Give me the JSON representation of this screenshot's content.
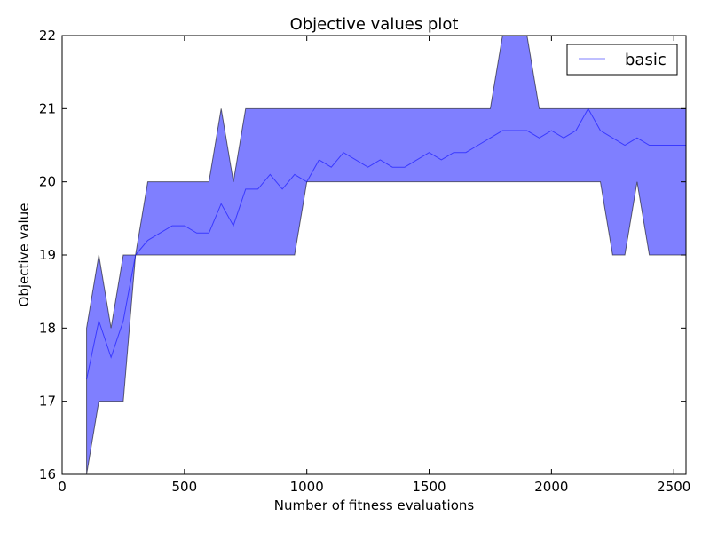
{
  "chart_data": {
    "type": "line",
    "title": "Objective values plot",
    "xlabel": "Number of fitness evaluations",
    "ylabel": "Objective value",
    "xlim": [
      0,
      2550
    ],
    "ylim": [
      16,
      22
    ],
    "xticks": [
      0,
      500,
      1000,
      1500,
      2000,
      2500
    ],
    "yticks": [
      16,
      17,
      18,
      19,
      20,
      21,
      22
    ],
    "grid": false,
    "legend_position": "top-right",
    "x": [
      100,
      150,
      200,
      250,
      300,
      350,
      400,
      450,
      500,
      550,
      600,
      650,
      700,
      750,
      800,
      850,
      900,
      950,
      1000,
      1050,
      1100,
      1150,
      1200,
      1250,
      1300,
      1350,
      1400,
      1450,
      1500,
      1550,
      1600,
      1650,
      1700,
      1750,
      1800,
      1850,
      1900,
      1950,
      2000,
      2050,
      2100,
      2150,
      2200,
      2250,
      2300,
      2350,
      2400,
      2450,
      2500,
      2550
    ],
    "series": [
      {
        "name": "basic",
        "color": "#0000ff",
        "mean": [
          17.3,
          18.1,
          17.6,
          18.1,
          19.0,
          19.2,
          19.3,
          19.4,
          19.4,
          19.3,
          19.3,
          19.7,
          19.4,
          19.9,
          19.9,
          20.1,
          19.9,
          20.1,
          20.0,
          20.3,
          20.2,
          20.4,
          20.3,
          20.2,
          20.3,
          20.2,
          20.2,
          20.3,
          20.4,
          20.3,
          20.4,
          20.4,
          20.5,
          20.6,
          20.7,
          20.7,
          20.7,
          20.6,
          20.7,
          20.6,
          20.7,
          21.0,
          20.7,
          20.6,
          20.5,
          20.6,
          20.5,
          20.5,
          20.5,
          20.5
        ],
        "upper": [
          18,
          19,
          18,
          19,
          19,
          20,
          20,
          20,
          20,
          20,
          20,
          21,
          20,
          21,
          21,
          21,
          21,
          21,
          21,
          21,
          21,
          21,
          21,
          21,
          21,
          21,
          21,
          21,
          21,
          21,
          21,
          21,
          21,
          21,
          22,
          22,
          22,
          21,
          21,
          21,
          21,
          21,
          21,
          21,
          21,
          21,
          21,
          21,
          21,
          21
        ],
        "lower": [
          16,
          17,
          17,
          17,
          19,
          19,
          19,
          19,
          19,
          19,
          19,
          19,
          19,
          19,
          19,
          19,
          19,
          19,
          20,
          20,
          20,
          20,
          20,
          20,
          20,
          20,
          20,
          20,
          20,
          20,
          20,
          20,
          20,
          20,
          20,
          20,
          20,
          20,
          20,
          20,
          20,
          20,
          20,
          19,
          19,
          20,
          19,
          19,
          19,
          19
        ]
      }
    ]
  }
}
